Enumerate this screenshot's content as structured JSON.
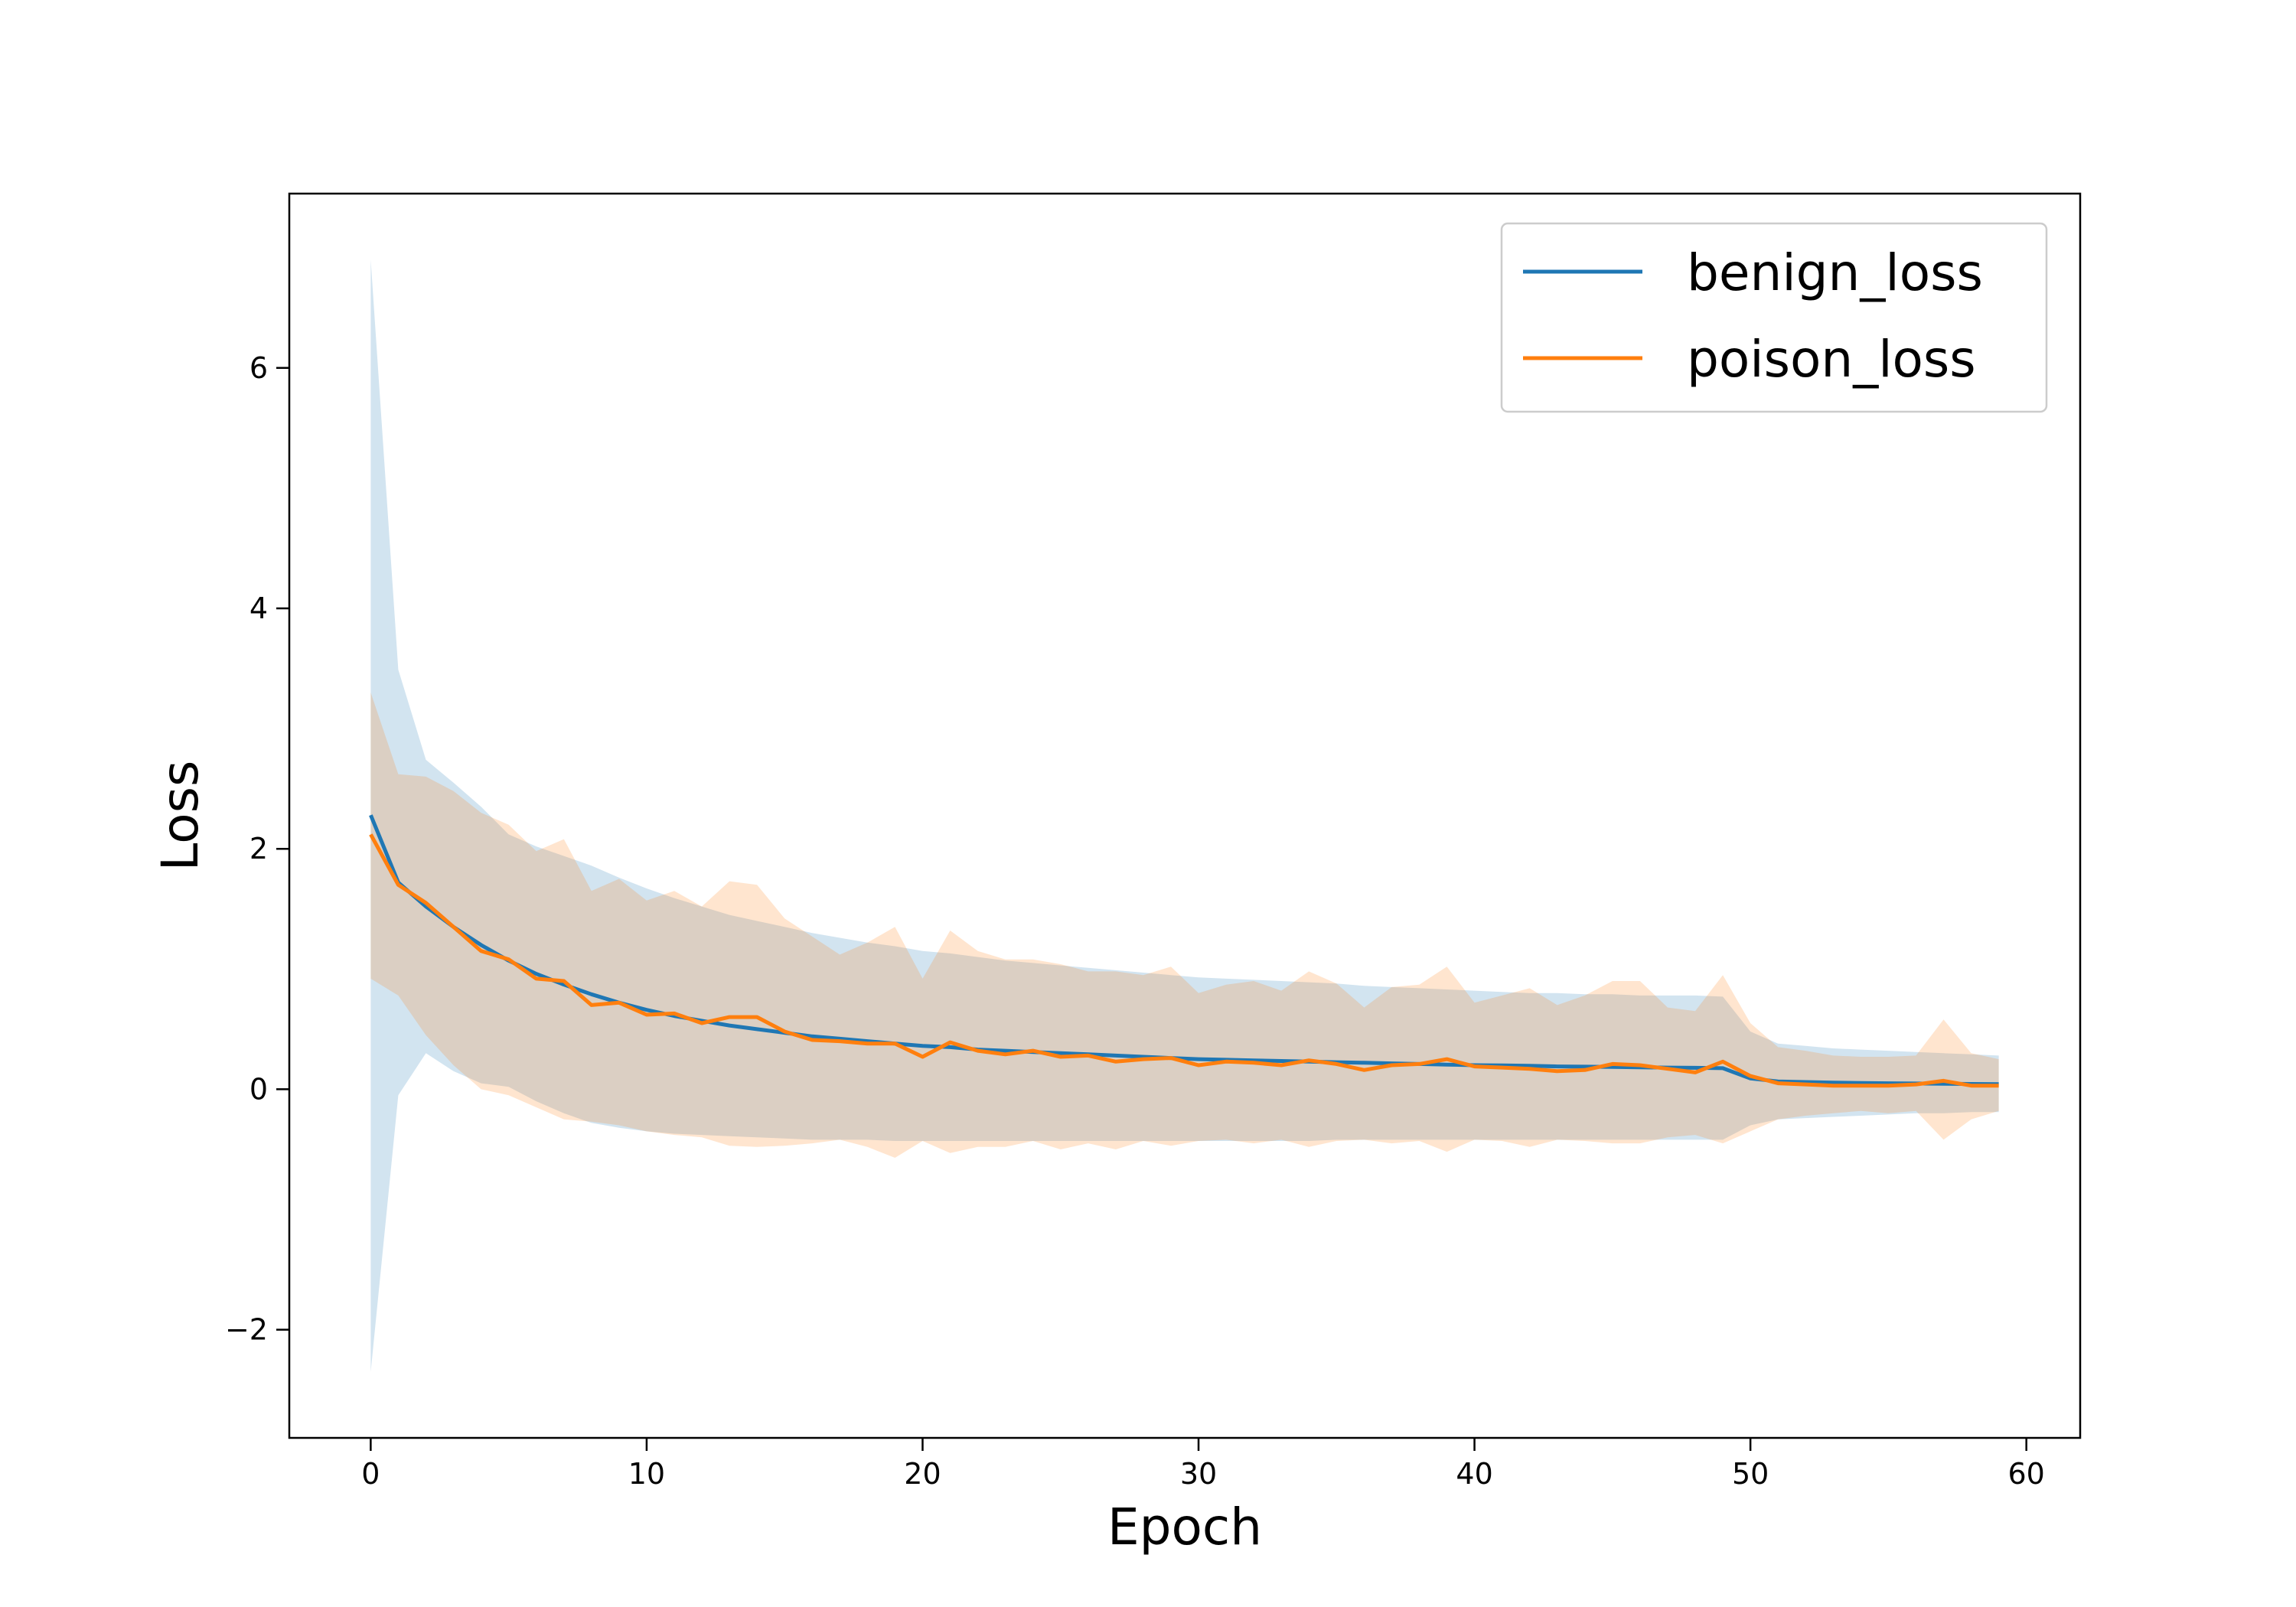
{
  "chart_data": {
    "type": "line",
    "title": "",
    "xlabel": "Epoch",
    "ylabel": "Loss",
    "xlim": [
      -2.95,
      61.95
    ],
    "ylim": [
      -2.9,
      7.45
    ],
    "xticks": [
      0,
      10,
      20,
      30,
      40,
      50,
      60
    ],
    "xtick_labels": [
      "0",
      "10",
      "20",
      "30",
      "40",
      "50",
      "60"
    ],
    "yticks": [
      -2,
      0,
      2,
      4,
      6
    ],
    "ytick_labels": [
      "−2",
      "0",
      "2",
      "4",
      "6"
    ],
    "grid": false,
    "legend_position": "top-right",
    "series": [
      {
        "name": "benign_loss",
        "color": "#1f77b4",
        "band_opacity": 0.2,
        "mean": [
          2.28,
          1.72,
          1.52,
          1.35,
          1.2,
          1.07,
          0.96,
          0.87,
          0.79,
          0.72,
          0.66,
          0.61,
          0.57,
          0.53,
          0.5,
          0.47,
          0.44,
          0.42,
          0.4,
          0.38,
          0.36,
          0.35,
          0.33,
          0.32,
          0.31,
          0.3,
          0.29,
          0.28,
          0.27,
          0.26,
          0.25,
          0.245,
          0.24,
          0.235,
          0.23,
          0.225,
          0.22,
          0.215,
          0.21,
          0.205,
          0.2,
          0.198,
          0.195,
          0.19,
          0.188,
          0.185,
          0.182,
          0.18,
          0.178,
          0.175,
          0.09,
          0.065,
          0.06,
          0.055,
          0.052,
          0.05,
          0.048,
          0.046,
          0.044,
          0.042
        ],
        "lower": [
          -2.35,
          -0.05,
          0.3,
          0.15,
          0.05,
          0.02,
          -0.1,
          -0.2,
          -0.28,
          -0.32,
          -0.35,
          -0.37,
          -0.38,
          -0.39,
          -0.4,
          -0.41,
          -0.42,
          -0.42,
          -0.42,
          -0.43,
          -0.43,
          -0.43,
          -0.43,
          -0.43,
          -0.43,
          -0.43,
          -0.43,
          -0.43,
          -0.43,
          -0.43,
          -0.43,
          -0.43,
          -0.43,
          -0.43,
          -0.43,
          -0.42,
          -0.42,
          -0.42,
          -0.42,
          -0.42,
          -0.42,
          -0.42,
          -0.42,
          -0.42,
          -0.42,
          -0.42,
          -0.42,
          -0.42,
          -0.42,
          -0.42,
          -0.3,
          -0.25,
          -0.24,
          -0.23,
          -0.22,
          -0.21,
          -0.2,
          -0.2,
          -0.19,
          -0.19
        ],
        "upper": [
          6.9,
          3.49,
          2.74,
          2.55,
          2.35,
          2.12,
          2.02,
          1.94,
          1.86,
          1.76,
          1.67,
          1.59,
          1.52,
          1.45,
          1.4,
          1.35,
          1.3,
          1.26,
          1.22,
          1.19,
          1.15,
          1.13,
          1.1,
          1.07,
          1.05,
          1.03,
          1.01,
          0.99,
          0.97,
          0.95,
          0.93,
          0.92,
          0.91,
          0.9,
          0.89,
          0.88,
          0.86,
          0.85,
          0.84,
          0.83,
          0.82,
          0.81,
          0.8,
          0.8,
          0.79,
          0.79,
          0.78,
          0.78,
          0.78,
          0.77,
          0.48,
          0.38,
          0.36,
          0.34,
          0.33,
          0.32,
          0.31,
          0.3,
          0.29,
          0.28
        ]
      },
      {
        "name": "poison_loss",
        "color": "#ff7f0e",
        "band_opacity": 0.2,
        "mean": [
          2.12,
          1.7,
          1.55,
          1.35,
          1.15,
          1.08,
          0.92,
          0.9,
          0.7,
          0.72,
          0.62,
          0.63,
          0.55,
          0.6,
          0.6,
          0.48,
          0.41,
          0.4,
          0.38,
          0.38,
          0.27,
          0.39,
          0.32,
          0.29,
          0.32,
          0.27,
          0.28,
          0.23,
          0.25,
          0.26,
          0.2,
          0.23,
          0.22,
          0.2,
          0.24,
          0.21,
          0.16,
          0.2,
          0.21,
          0.25,
          0.19,
          0.18,
          0.17,
          0.15,
          0.16,
          0.21,
          0.2,
          0.17,
          0.14,
          0.23,
          0.11,
          0.05,
          0.04,
          0.03,
          0.03,
          0.03,
          0.04,
          0.07,
          0.03,
          0.03
        ],
        "lower": [
          0.92,
          0.78,
          0.45,
          0.2,
          0.0,
          -0.05,
          -0.15,
          -0.25,
          -0.27,
          -0.3,
          -0.35,
          -0.38,
          -0.4,
          -0.47,
          -0.48,
          -0.47,
          -0.45,
          -0.42,
          -0.48,
          -0.57,
          -0.43,
          -0.53,
          -0.48,
          -0.48,
          -0.43,
          -0.5,
          -0.45,
          -0.5,
          -0.43,
          -0.47,
          -0.43,
          -0.42,
          -0.45,
          -0.42,
          -0.48,
          -0.43,
          -0.42,
          -0.45,
          -0.43,
          -0.52,
          -0.42,
          -0.43,
          -0.48,
          -0.42,
          -0.43,
          -0.45,
          -0.45,
          -0.4,
          -0.38,
          -0.45,
          -0.35,
          -0.25,
          -0.22,
          -0.2,
          -0.18,
          -0.2,
          -0.18,
          -0.42,
          -0.25,
          -0.18
        ],
        "upper": [
          3.3,
          2.62,
          2.6,
          2.48,
          2.3,
          2.2,
          1.98,
          2.08,
          1.65,
          1.75,
          1.57,
          1.65,
          1.52,
          1.73,
          1.7,
          1.42,
          1.27,
          1.12,
          1.22,
          1.35,
          0.92,
          1.32,
          1.15,
          1.08,
          1.08,
          1.04,
          0.98,
          0.98,
          0.95,
          1.02,
          0.8,
          0.87,
          0.9,
          0.82,
          0.98,
          0.88,
          0.68,
          0.85,
          0.87,
          1.02,
          0.72,
          0.78,
          0.84,
          0.7,
          0.78,
          0.9,
          0.9,
          0.68,
          0.65,
          0.95,
          0.55,
          0.35,
          0.32,
          0.28,
          0.27,
          0.27,
          0.28,
          0.58,
          0.3,
          0.25
        ]
      }
    ]
  }
}
